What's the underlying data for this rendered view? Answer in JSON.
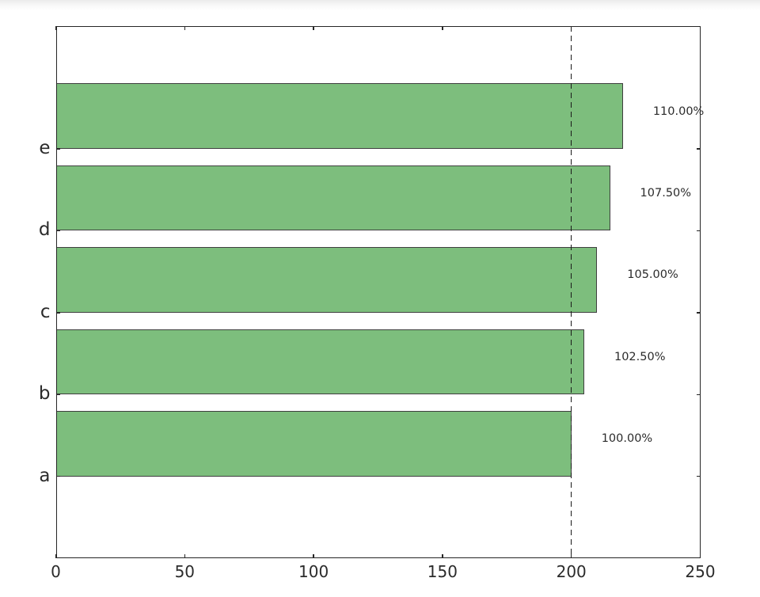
{
  "chart_data": {
    "type": "bar",
    "orientation": "horizontal",
    "categories": [
      "a",
      "b",
      "c",
      "d",
      "e"
    ],
    "values": [
      200,
      205,
      210,
      215,
      220
    ],
    "bar_labels": [
      "100.00%",
      "102.50%",
      "105.00%",
      "107.50%",
      "110.00%"
    ],
    "xticks": [
      0,
      50,
      100,
      150,
      200,
      250
    ],
    "xlim": [
      0,
      250
    ],
    "ylim": [
      -1,
      5.5
    ],
    "bar_thickness": 0.8,
    "bar_align": "edge",
    "reference_line": {
      "x": 200,
      "style": "dashed",
      "color": "#1a1a1a"
    },
    "grid": false,
    "legend": false,
    "title": "",
    "xlabel": "",
    "ylabel": "",
    "colors": {
      "bar_fill": "#7dbe7d",
      "bar_edge": "#3f3f3f",
      "axis": "#262626",
      "text": "#2b2b2b"
    }
  }
}
